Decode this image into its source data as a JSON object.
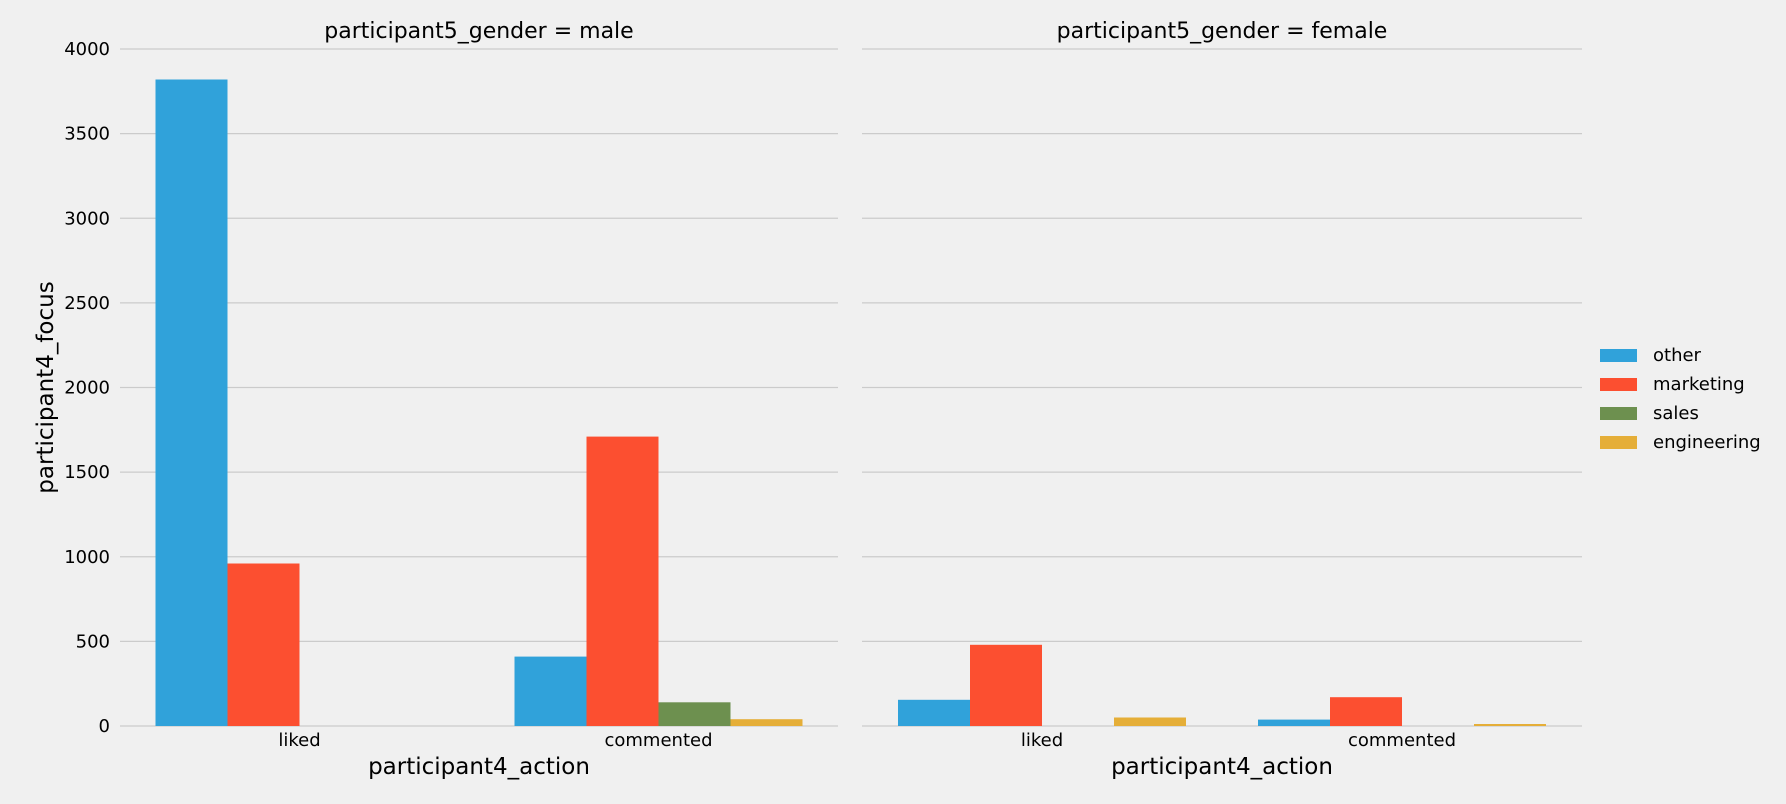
{
  "chart_data": {
    "type": "bar",
    "title": "",
    "ylabel": "participant4_focus",
    "xlabel": "participant4_action",
    "ylim": [
      0,
      4000
    ],
    "yticks": [
      0,
      500,
      1000,
      1500,
      2000,
      2500,
      3000,
      3500,
      4000
    ],
    "grid": true,
    "legend_position": "right",
    "categories": [
      "liked",
      "commented"
    ],
    "hue_order": [
      "other",
      "marketing",
      "sales",
      "engineering"
    ],
    "colors": {
      "other": "#30a2da",
      "marketing": "#fc4f30",
      "sales": "#6d904f",
      "engineering": "#e5ae38"
    },
    "facets": [
      {
        "title": "participant5_gender = male",
        "series": [
          {
            "name": "other",
            "values": [
              3820,
              410
            ]
          },
          {
            "name": "marketing",
            "values": [
              960,
              1710
            ]
          },
          {
            "name": "sales",
            "values": [
              0,
              140
            ]
          },
          {
            "name": "engineering",
            "values": [
              0,
              40
            ]
          }
        ]
      },
      {
        "title": "participant5_gender = female",
        "series": [
          {
            "name": "other",
            "values": [
              155,
              38
            ]
          },
          {
            "name": "marketing",
            "values": [
              480,
              170
            ]
          },
          {
            "name": "sales",
            "values": [
              0,
              0
            ]
          },
          {
            "name": "engineering",
            "values": [
              50,
              12
            ]
          }
        ]
      }
    ]
  }
}
